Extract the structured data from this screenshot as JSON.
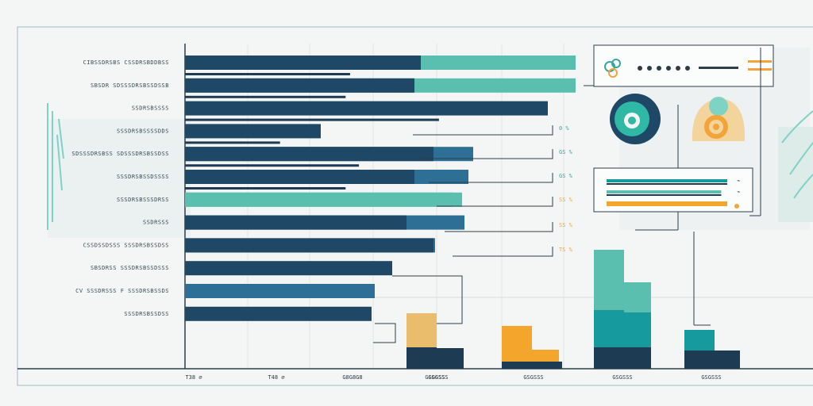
{
  "colors": {
    "navy": "#1f4766",
    "blue": "#2e6f96",
    "teal": "#5bbfb0",
    "deep_teal": "#179a9e",
    "orange": "#f4a52c",
    "sand": "#e9bd6c",
    "dark": "#1d3b52"
  },
  "chart_data": [
    {
      "type": "bar",
      "orientation": "horizontal",
      "categories": [
        "CIBSSDRSBS CSSDRSBDDBSS",
        "SBSDR SDSSSDRSBSSDSSB",
        "SSDRSBSSSS",
        "SSSDRSBSSSSDDS",
        "SDSSSDRSBSS SDSSSDRSBSSDSS",
        "SSSDRSBSSDSSSS",
        "SSSDRSBSSSDRSS",
        "SSDRSSS",
        "CSSDSSDSSS SSSDRSBSSDSS",
        "SBSDRSS SSSDRSBSSDSSS",
        "CV SSSDRSSS F SSSDRSBSSDS",
        "SSSDRSBSSDSS"
      ],
      "series": [
        {
          "values": [
            530,
            522,
            690,
            404,
            546,
            522,
            570,
            512,
            546,
            494,
            472,
            468
          ]
        },
        {
          "values": [
            725,
            725,
            0,
            0,
            596,
            590,
            582,
            585,
            548,
            494,
            472,
            468
          ]
        }
      ],
      "x_ticks": [
        "T38",
        "T48",
        "G8G8",
        "G8GGSS"
      ],
      "value_labels": [
        "0 %",
        "GS %",
        "GS %",
        "SS %",
        "SS %",
        "TS %"
      ],
      "grid": true
    },
    {
      "type": "bar",
      "categories": [
        "GSGSS",
        "GSGSSS",
        "GSGSS"
      ],
      "series": [
        {
          "values": [
            70,
            54,
            150
          ]
        },
        {
          "values": [
            26,
            24,
            48
          ]
        }
      ],
      "x_ticks": [
        "GSGSS",
        "GSGSSS",
        "GSGSS"
      ]
    },
    {
      "type": "bar",
      "orientation": "horizontal",
      "series": [
        {
          "values": [
            100,
            95,
            100
          ]
        }
      ]
    }
  ],
  "legend_card": {
    "dots": 6
  },
  "bottom_ticks": [
    "T38 ∅",
    "T48 ∅",
    "G8G8G8",
    "GSGSSS",
    "GSGSSS",
    "GSGSSS",
    "GSGSSS"
  ]
}
